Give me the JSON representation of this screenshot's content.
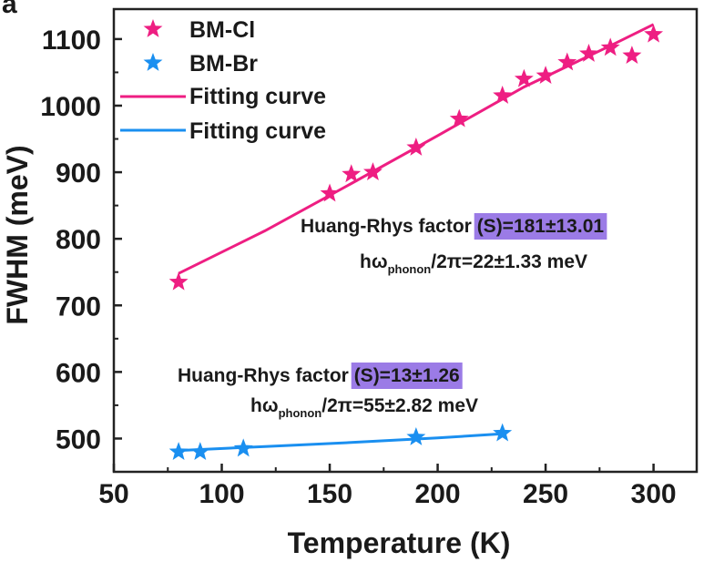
{
  "panel_label": "a",
  "chart_data": {
    "type": "scatter",
    "xlabel": "Temperature (K)",
    "ylabel": "FWHM (meV)",
    "xlim": [
      50,
      320
    ],
    "ylim": [
      450,
      1145
    ],
    "xticks": [
      50,
      100,
      150,
      200,
      250,
      300
    ],
    "yticks": [
      500,
      600,
      700,
      800,
      900,
      1000,
      1100
    ],
    "grid": false,
    "legend_position": "top-left",
    "legend": [
      {
        "label": "BM-Cl",
        "kind": "marker",
        "color": "#ee1e82"
      },
      {
        "label": "BM-Br",
        "kind": "marker",
        "color": "#1a8ff0"
      },
      {
        "label": "Fitting curve",
        "kind": "line",
        "color": "#ee1e82"
      },
      {
        "label": "Fitting curve",
        "kind": "line",
        "color": "#1a8ff0"
      }
    ],
    "series": [
      {
        "name": "BM-Cl",
        "marker": "star",
        "color": "#ee1e82",
        "points": [
          [
            80,
            735
          ],
          [
            150,
            868
          ],
          [
            160,
            897
          ],
          [
            170,
            900
          ],
          [
            190,
            937
          ],
          [
            210,
            980
          ],
          [
            230,
            1015
          ],
          [
            240,
            1040
          ],
          [
            250,
            1045
          ],
          [
            260,
            1065
          ],
          [
            270,
            1078
          ],
          [
            280,
            1087
          ],
          [
            290,
            1075
          ],
          [
            300,
            1107
          ]
        ]
      },
      {
        "name": "BM-Br",
        "marker": "star",
        "color": "#1a8ff0",
        "points": [
          [
            80,
            480
          ],
          [
            90,
            480
          ],
          [
            110,
            485
          ],
          [
            190,
            502
          ],
          [
            230,
            508
          ]
        ]
      }
    ],
    "fits": [
      {
        "label": "Fitting curve",
        "color": "#ee1e82",
        "points": [
          [
            80,
            748
          ],
          [
            120,
            812
          ],
          [
            160,
            883
          ],
          [
            200,
            955
          ],
          [
            240,
            1028
          ],
          [
            280,
            1090
          ],
          [
            300,
            1122
          ]
        ]
      },
      {
        "label": "Fitting curve",
        "color": "#1a8ff0",
        "points": [
          [
            80,
            482
          ],
          [
            120,
            488
          ],
          [
            160,
            494
          ],
          [
            200,
            501
          ],
          [
            230,
            507
          ]
        ]
      }
    ],
    "annotations": [
      {
        "id": "cl-s",
        "prefix": "Huang-Rhys factor ",
        "highlight": "(S)=181±13.01"
      },
      {
        "id": "cl-phonon",
        "pre": "hω",
        "sub": "phonon",
        "post": "/2π=22±1.33 meV"
      },
      {
        "id": "br-s",
        "prefix": "Huang-Rhys factor ",
        "highlight": "(S)=13±1.26"
      },
      {
        "id": "br-phonon",
        "pre": "hω",
        "sub": "phonon",
        "post": "/2π=55±2.82 meV"
      }
    ],
    "highlight_color": "#9b7be6"
  }
}
